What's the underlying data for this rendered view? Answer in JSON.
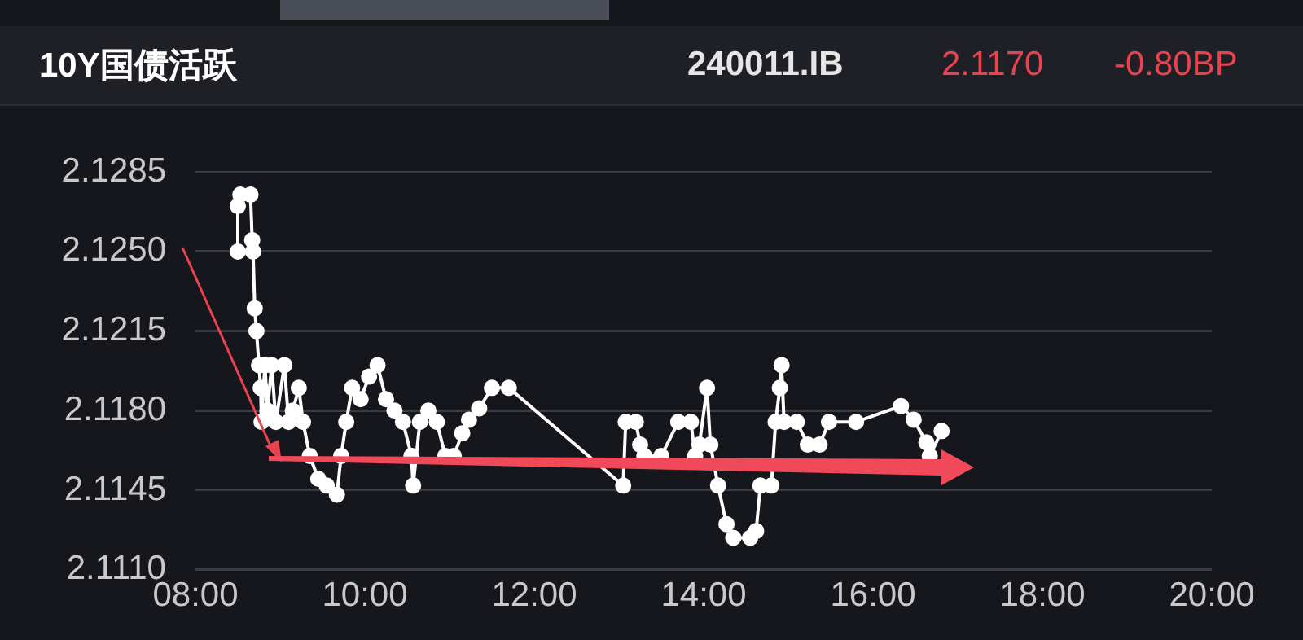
{
  "chart_data": {
    "type": "line",
    "title": "10Y国债活跃",
    "subtitle": "240011.IB",
    "annotations": [
      "2.1170",
      "-0.80BP"
    ],
    "series": [
      {
        "color": "#ffffff",
        "x": [
          8.5,
          8.5,
          8.53,
          8.65,
          8.67,
          8.68,
          8.7,
          8.72,
          8.75,
          8.77,
          8.78,
          8.82,
          8.85,
          8.9,
          8.95,
          9.05,
          9.1,
          9.15,
          9.22,
          9.27,
          9.35,
          9.45,
          9.55,
          9.67,
          9.72,
          9.78,
          9.85,
          9.95,
          10.05,
          10.15,
          10.25,
          10.35,
          10.45,
          10.55,
          10.57,
          10.65,
          10.75,
          10.85,
          10.95,
          11.05,
          11.15,
          11.23,
          11.35,
          11.5,
          11.7,
          13.05,
          13.08,
          13.2,
          13.25,
          13.3,
          13.5,
          13.7,
          13.85,
          13.9,
          13.95,
          14.04,
          14.08,
          14.17,
          14.27,
          14.35,
          14.55,
          14.62,
          14.67,
          14.8,
          14.85,
          14.9,
          14.92,
          14.95,
          15.1,
          15.23,
          15.37,
          15.48,
          15.8,
          16.33,
          16.48,
          16.63,
          16.67,
          16.81
        ],
        "values": [
          2.125,
          2.127,
          2.1275,
          2.1275,
          2.1255,
          2.125,
          2.1225,
          2.1215,
          2.12,
          2.119,
          2.1175,
          2.12,
          2.118,
          2.12,
          2.1175,
          2.12,
          2.1175,
          2.118,
          2.119,
          2.1175,
          2.116,
          2.115,
          2.1147,
          2.1143,
          2.116,
          2.1175,
          2.119,
          2.1185,
          2.1195,
          2.12,
          2.1185,
          2.118,
          2.1175,
          2.116,
          2.1147,
          2.1175,
          2.118,
          2.1175,
          2.116,
          2.116,
          2.117,
          2.1176,
          2.1181,
          2.119,
          2.119,
          2.1147,
          2.1175,
          2.1175,
          2.1165,
          2.116,
          2.116,
          2.1175,
          2.1175,
          2.116,
          2.1165,
          2.119,
          2.1165,
          2.1147,
          2.113,
          2.1124,
          2.1124,
          2.1127,
          2.1147,
          2.1147,
          2.1175,
          2.119,
          2.12,
          2.1175,
          2.1175,
          2.1165,
          2.1165,
          2.1175,
          2.1175,
          2.1182,
          2.1176,
          2.1166,
          2.116,
          2.1171
        ]
      }
    ],
    "xlim": [
      8,
      20
    ],
    "xticks": [
      {
        "value": 8,
        "label": "08:00"
      },
      {
        "value": 10,
        "label": "10:00"
      },
      {
        "value": 12,
        "label": "12:00"
      },
      {
        "value": 14,
        "label": "14:00"
      },
      {
        "value": 16,
        "label": "16:00"
      },
      {
        "value": 18,
        "label": "18:00"
      },
      {
        "value": 20,
        "label": "20:00"
      }
    ],
    "ylim": [
      2.111,
      2.1285
    ],
    "yticks": [
      {
        "value": 2.111,
        "label": "2.1110"
      },
      2.1145,
      {
        "value": 2.118,
        "label": "2.1180"
      },
      2.1215,
      {
        "value": 2.125,
        "label": "2.1250"
      },
      2.1285
    ],
    "grid": "y",
    "marker": "circle",
    "line_style": "solid"
  }
}
